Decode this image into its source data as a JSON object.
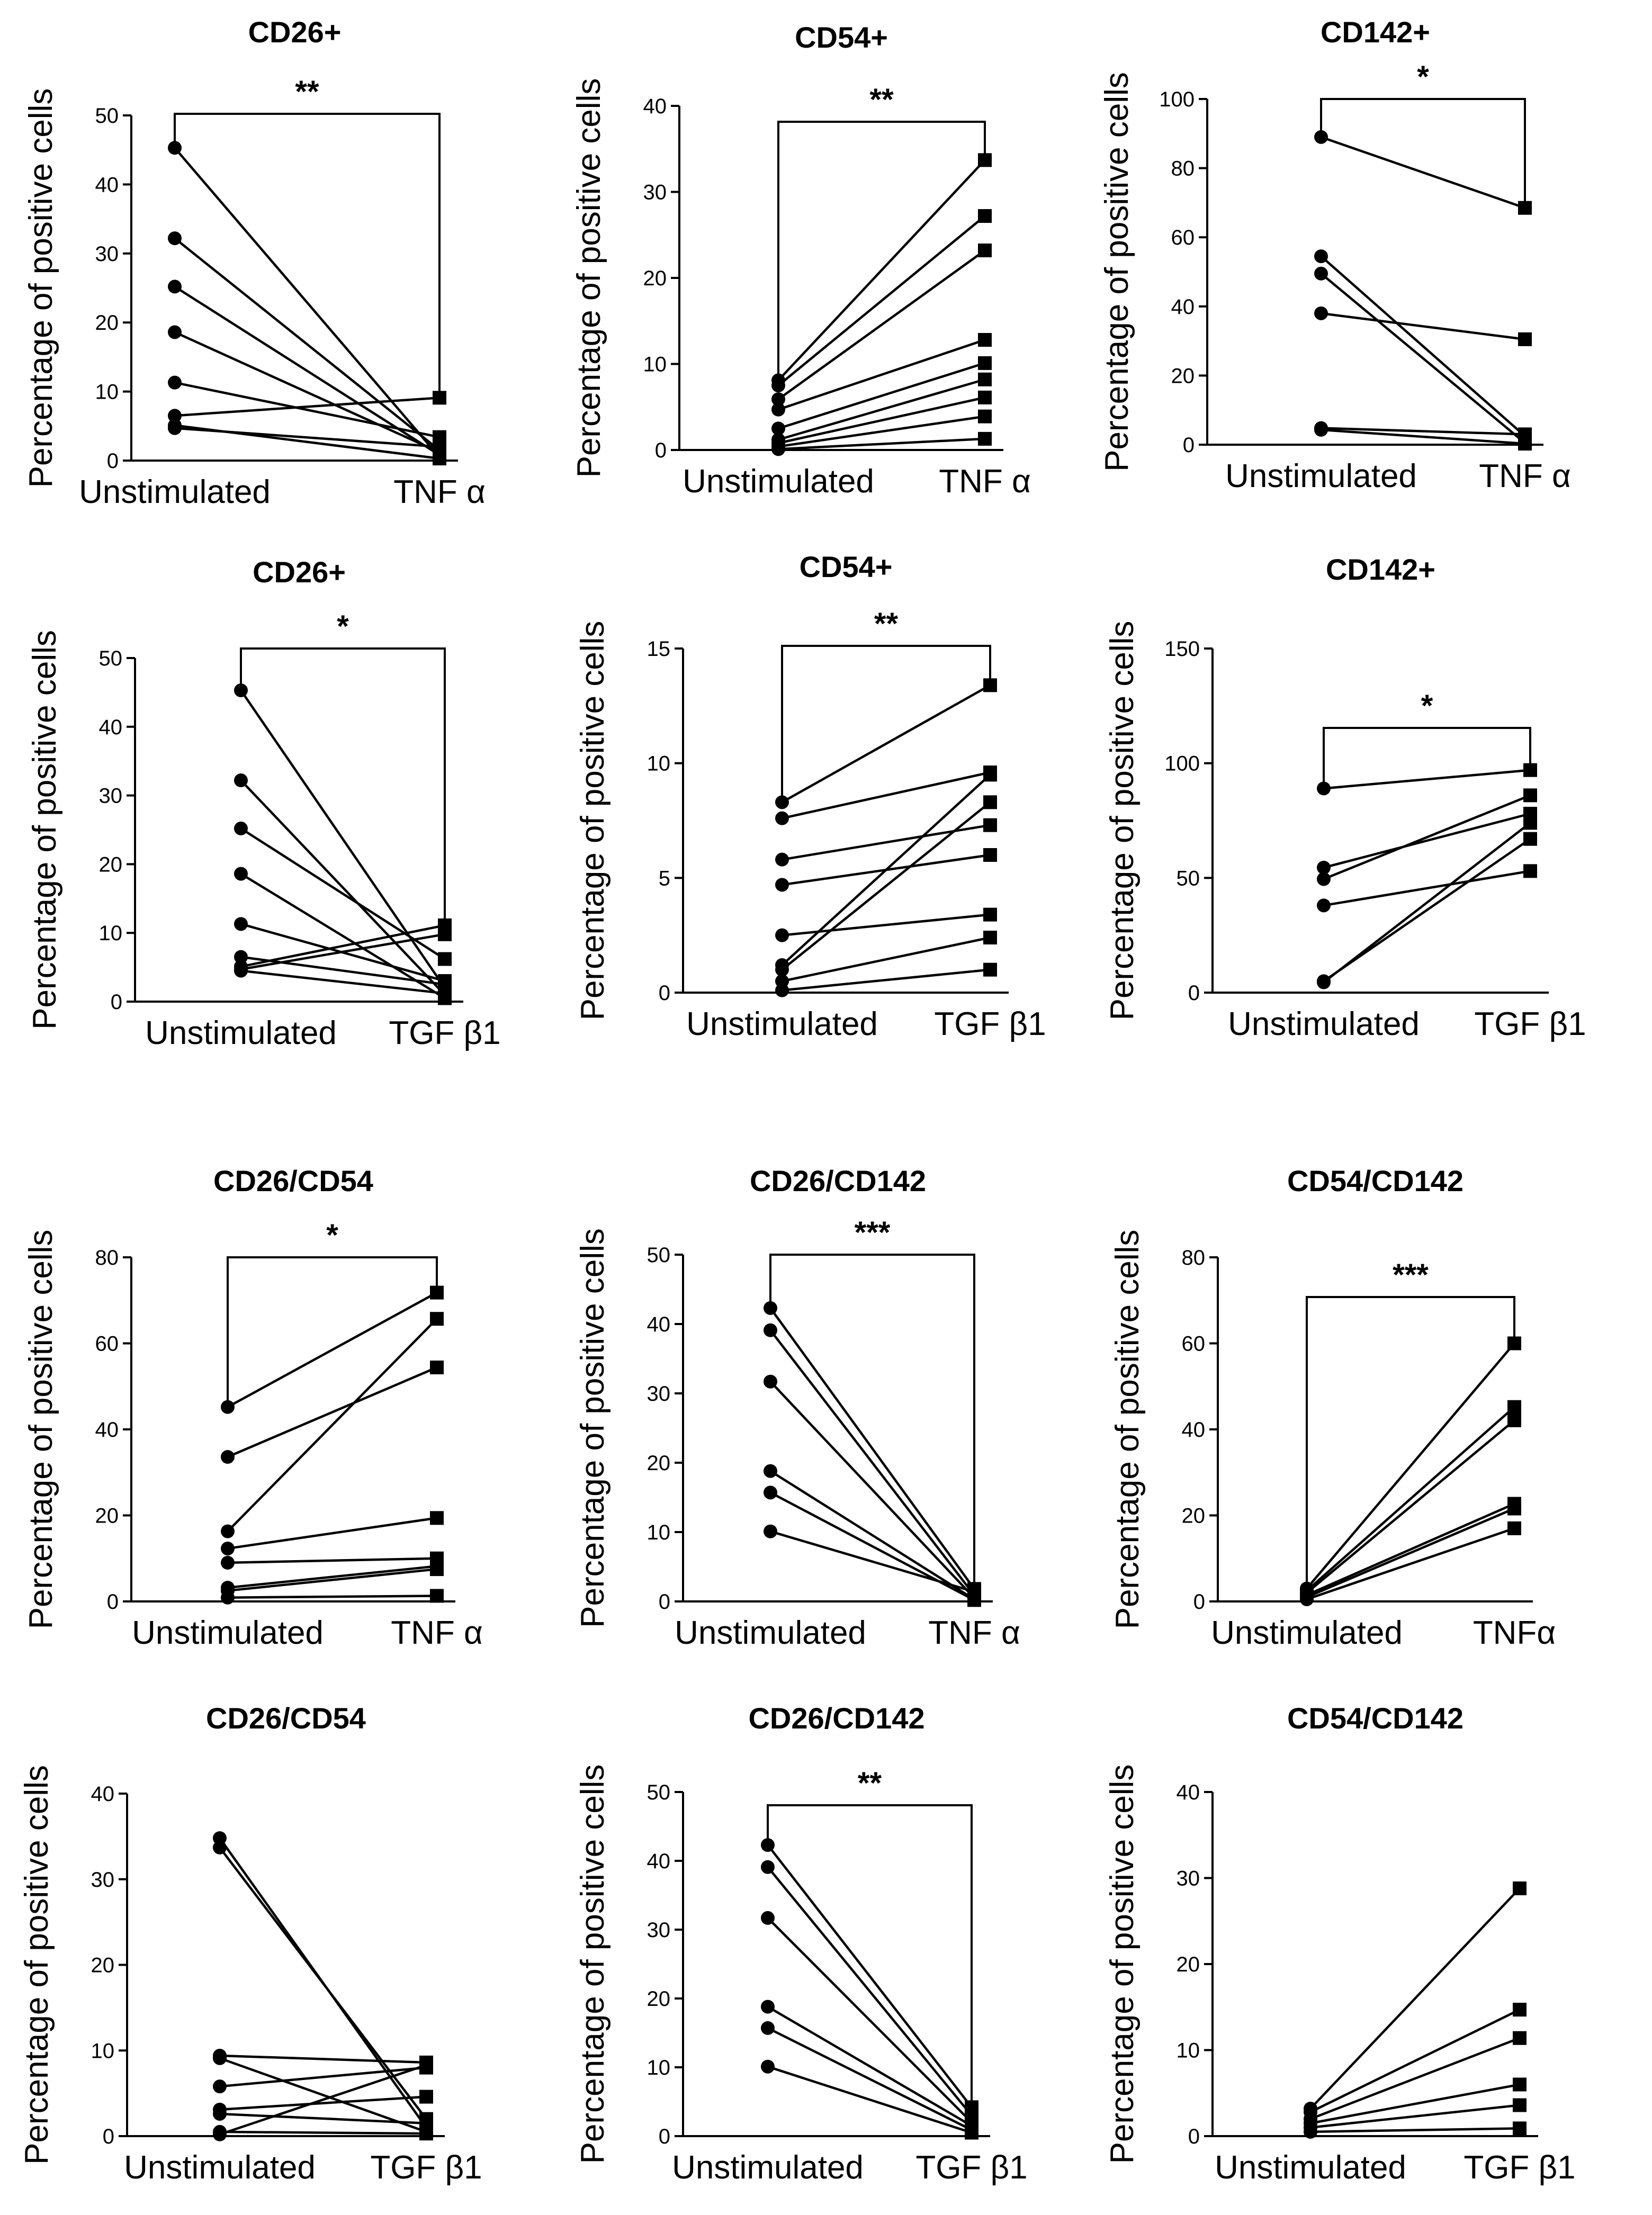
{
  "figure": {
    "ylabel_common": "Percentage of positive cells"
  },
  "chart_data": [
    {
      "type": "line",
      "title": "CD26+",
      "categories": [
        "Unstimulated",
        "TNF α"
      ],
      "ylabel": "Percentage of positive cells",
      "ylim": [
        0,
        50
      ],
      "yticks": [
        0,
        10,
        20,
        30,
        40,
        50
      ],
      "significance": "**",
      "series": [
        [
          45.3,
          0.5
        ],
        [
          32.2,
          1.5
        ],
        [
          25.2,
          0.8
        ],
        [
          18.6,
          1.2
        ],
        [
          11.3,
          3.4
        ],
        [
          6.5,
          9.1
        ],
        [
          5.1,
          0.3
        ],
        [
          4.7,
          2.0
        ]
      ]
    },
    {
      "type": "line",
      "title": "CD54+",
      "categories": [
        "Unstimulated",
        "TNF α"
      ],
      "ylabel": "Percentage of positive cells",
      "ylim": [
        0,
        40
      ],
      "yticks": [
        0,
        10,
        20,
        30,
        40
      ],
      "significance": "**",
      "series": [
        [
          8.1,
          33.7
        ],
        [
          7.5,
          27.2
        ],
        [
          5.9,
          23.2
        ],
        [
          4.7,
          12.8
        ],
        [
          2.5,
          10.1
        ],
        [
          1.2,
          8.2
        ],
        [
          0.8,
          6.1
        ],
        [
          0.4,
          3.9
        ],
        [
          0.1,
          1.3
        ]
      ]
    },
    {
      "type": "line",
      "title": "CD142+",
      "categories": [
        "Unstimulated",
        "TNF α"
      ],
      "ylabel": "Percentage of positive cells",
      "ylim": [
        0,
        100
      ],
      "yticks": [
        0,
        20,
        40,
        60,
        80,
        100
      ],
      "significance": "*",
      "series": [
        [
          89,
          68.5
        ],
        [
          54.5,
          2.5
        ],
        [
          49.5,
          0.5
        ],
        [
          38,
          30.5
        ],
        [
          4.8,
          3.0
        ],
        [
          4.3,
          0.3
        ]
      ]
    },
    {
      "type": "line",
      "title": "CD26+",
      "categories": [
        "Unstimulated",
        "TGF β1"
      ],
      "ylabel": "Percentage of positive cells",
      "ylim": [
        0,
        50
      ],
      "yticks": [
        0,
        10,
        20,
        30,
        40,
        50
      ],
      "significance": "*",
      "series": [
        [
          45.3,
          2.0
        ],
        [
          32.2,
          1.0
        ],
        [
          25.2,
          6.2
        ],
        [
          18.6,
          0.5
        ],
        [
          11.3,
          3.0
        ],
        [
          6.5,
          2.5
        ],
        [
          5.1,
          11.1
        ],
        [
          4.7,
          9.8
        ],
        [
          4.5,
          1.2
        ]
      ]
    },
    {
      "type": "line",
      "title": "CD54+",
      "categories": [
        "Unstimulated",
        "TGF β1"
      ],
      "ylabel": "Percentage of positive cells",
      "ylim": [
        0,
        15
      ],
      "yticks": [
        0,
        5,
        10,
        15
      ],
      "significance": "**",
      "series": [
        [
          8.3,
          13.4
        ],
        [
          7.6,
          9.6
        ],
        [
          5.8,
          7.3
        ],
        [
          4.7,
          6.0
        ],
        [
          2.5,
          3.4
        ],
        [
          1.2,
          9.5
        ],
        [
          1.0,
          8.3
        ],
        [
          0.5,
          2.4
        ],
        [
          0.1,
          1.0
        ]
      ]
    },
    {
      "type": "line",
      "title": "CD142+",
      "categories": [
        "Unstimulated",
        "TGF β1"
      ],
      "ylabel": "Percentage of positive cells",
      "ylim": [
        0,
        150
      ],
      "yticks": [
        0,
        50,
        100,
        150
      ],
      "significance": "*",
      "series": [
        [
          89,
          97
        ],
        [
          54.5,
          78
        ],
        [
          49.5,
          86
        ],
        [
          38,
          53
        ],
        [
          5,
          67
        ],
        [
          4.5,
          74
        ]
      ]
    },
    {
      "type": "line",
      "title": "CD26/CD54",
      "categories": [
        "Unstimulated",
        "TNF α"
      ],
      "ylabel": "Percentage of positive cells",
      "ylim": [
        0,
        80
      ],
      "yticks": [
        0,
        20,
        40,
        60,
        80
      ],
      "significance": "*",
      "series": [
        [
          45.2,
          71.8
        ],
        [
          33.6,
          54.4
        ],
        [
          16.3,
          65.7
        ],
        [
          12.3,
          19.4
        ],
        [
          9.0,
          10.0
        ],
        [
          3.2,
          8.2
        ],
        [
          2.5,
          7.5
        ],
        [
          0.9,
          1.3
        ]
      ]
    },
    {
      "type": "line",
      "title": "CD26/CD142",
      "categories": [
        "Unstimulated",
        "TNF α"
      ],
      "ylabel": "Percentage of positive cells",
      "ylim": [
        0,
        50
      ],
      "yticks": [
        0,
        10,
        20,
        30,
        40,
        50
      ],
      "significance": "***",
      "series": [
        [
          42.3,
          1.8
        ],
        [
          39.1,
          0.9
        ],
        [
          31.7,
          0.5
        ],
        [
          18.8,
          0.3
        ],
        [
          15.7,
          0.2
        ],
        [
          10.1,
          1.4
        ]
      ]
    },
    {
      "type": "line",
      "title": "CD54/CD142",
      "categories": [
        "Unstimulated",
        "TNFα"
      ],
      "ylabel": "Percentage of positive cells",
      "ylim": [
        0,
        80
      ],
      "yticks": [
        0,
        20,
        40,
        60,
        80
      ],
      "significance": "***",
      "series": [
        [
          3.0,
          60.0
        ],
        [
          2.5,
          45.2
        ],
        [
          2.0,
          42.1
        ],
        [
          1.5,
          22.7
        ],
        [
          1.0,
          21.6
        ],
        [
          0.5,
          17.0
        ]
      ]
    },
    {
      "type": "line",
      "title": "CD26/CD54",
      "categories": [
        "Unstimulated",
        "TGF β1"
      ],
      "ylabel": "Percentage of positive cells",
      "ylim": [
        0,
        40
      ],
      "yticks": [
        0,
        10,
        20,
        30,
        40
      ],
      "series": [
        [
          34.8,
          1.0
        ],
        [
          33.7,
          2.0
        ],
        [
          9.4,
          8.6
        ],
        [
          9.1,
          0.5
        ],
        [
          5.8,
          8.0
        ],
        [
          3.1,
          4.6
        ],
        [
          2.6,
          1.5
        ],
        [
          0.5,
          0.3
        ],
        [
          0.2,
          8.3
        ]
      ]
    },
    {
      "type": "line",
      "title": "CD26/CD142",
      "categories": [
        "Unstimulated",
        "TGF β1"
      ],
      "ylabel": "Percentage of positive cells",
      "ylim": [
        0,
        50
      ],
      "yticks": [
        0,
        10,
        20,
        30,
        40,
        50
      ],
      "significance": "**",
      "series": [
        [
          42.3,
          4.2
        ],
        [
          39.1,
          3.0
        ],
        [
          31.7,
          2.0
        ],
        [
          18.8,
          1.5
        ],
        [
          15.7,
          0.9
        ],
        [
          10.1,
          0.5
        ]
      ]
    },
    {
      "type": "line",
      "title": "CD54/CD142",
      "categories": [
        "Unstimulated",
        "TGF β1"
      ],
      "ylabel": "Percentage of positive cells",
      "ylim": [
        0,
        40
      ],
      "yticks": [
        0,
        10,
        20,
        30,
        40
      ],
      "series": [
        [
          3.2,
          28.8
        ],
        [
          2.8,
          14.7
        ],
        [
          2.0,
          11.4
        ],
        [
          1.5,
          6.0
        ],
        [
          1.0,
          3.6
        ],
        [
          0.5,
          0.9
        ]
      ]
    }
  ]
}
